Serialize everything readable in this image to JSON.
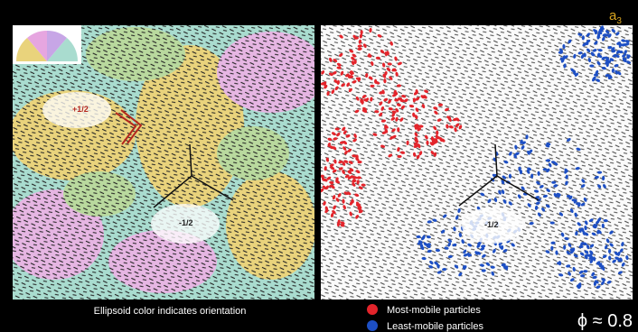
{
  "corner_label": {
    "text": "a",
    "subscript": "3"
  },
  "left_panel": {
    "defects": [
      "+1/2",
      "-1/2"
    ],
    "caption": "Ellipsoid color indicates orientation"
  },
  "right_panel": {
    "defects": [
      "-1/2"
    ]
  },
  "legend": [
    {
      "label": "Most-mobile particles",
      "color": "#e3242b"
    },
    {
      "label": "Least-mobile particles",
      "color": "#1d4fc4"
    }
  ],
  "packing": "ϕ ≈ 0.8"
}
